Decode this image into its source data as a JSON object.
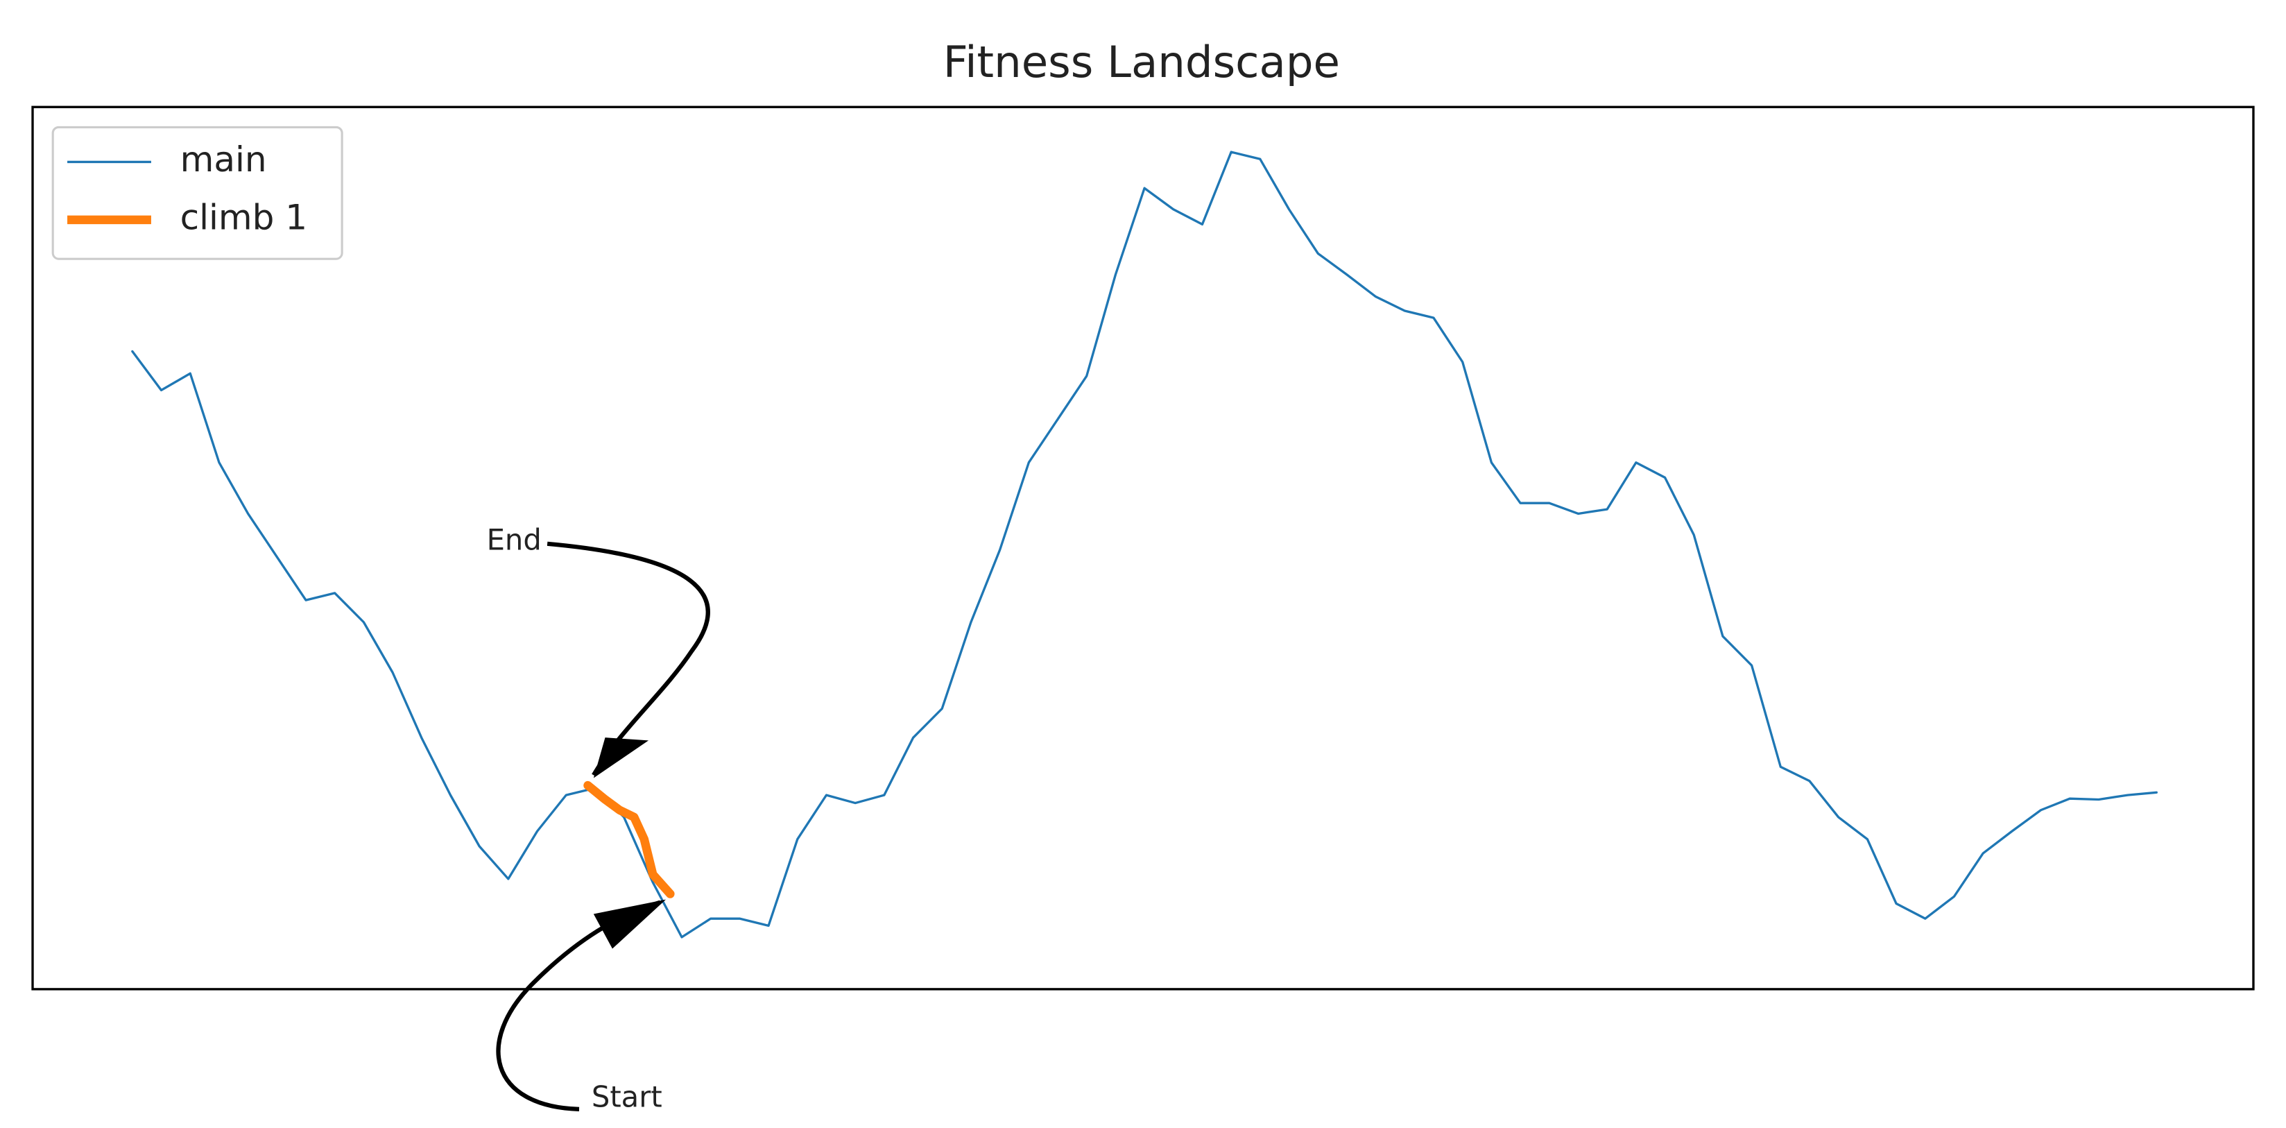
{
  "chart_data": {
    "type": "line",
    "title": "Fitness Landscape",
    "x": [
      0,
      1,
      2,
      3,
      4,
      5,
      6,
      7,
      8,
      9,
      10,
      11,
      12,
      13,
      14,
      15,
      16,
      17,
      18,
      19,
      20,
      21,
      22,
      23,
      24,
      25,
      26,
      27,
      28,
      29,
      30,
      31,
      32,
      33,
      34,
      35,
      36,
      37,
      38,
      39,
      40,
      41,
      42,
      43,
      44,
      45,
      46,
      47,
      48,
      49,
      50,
      51,
      52,
      53,
      54,
      55,
      56,
      57,
      58,
      59,
      60,
      61,
      62,
      63,
      64,
      65,
      66,
      67,
      68,
      69,
      70
    ],
    "xlim": [
      -3.45,
      73.35
    ],
    "ylim": [
      0,
      100
    ],
    "series": [
      {
        "name": "main",
        "color": "#1f77b4",
        "values": [
          72.3,
          67.9,
          69.8,
          59.7,
          53.9,
          49.0,
          44.1,
          44.9,
          41.6,
          35.9,
          28.5,
          22.0,
          16.2,
          12.5,
          17.9,
          22.0,
          22.8,
          19.5,
          12.1,
          5.9,
          8.0,
          8.0,
          7.2,
          17.0,
          22.0,
          21.1,
          22.0,
          28.5,
          31.8,
          41.6,
          49.8,
          59.7,
          64.6,
          69.5,
          81.0,
          90.8,
          88.4,
          86.7,
          94.9,
          94.1,
          88.4,
          83.4,
          81.0,
          78.5,
          76.9,
          76.1,
          71.1,
          59.7,
          55.1,
          55.1,
          53.9,
          54.4,
          59.7,
          58.0,
          51.5,
          40.0,
          36.7,
          25.2,
          23.6,
          19.5,
          17.0,
          9.7,
          8.0,
          10.5,
          15.4,
          17.9,
          20.3,
          21.6,
          21.5,
          22.0,
          22.3
        ]
      },
      {
        "name": "climb 1",
        "color": "#ff7f0e",
        "x": [
          15.75,
          16.35,
          16.85,
          17.35,
          17.7,
          18.0,
          18.6
        ],
        "values": [
          23.1,
          21.5,
          20.3,
          19.5,
          17.0,
          13.0,
          10.8
        ]
      }
    ],
    "legend": "upper left",
    "annotations": [
      "End",
      "Start"
    ]
  }
}
